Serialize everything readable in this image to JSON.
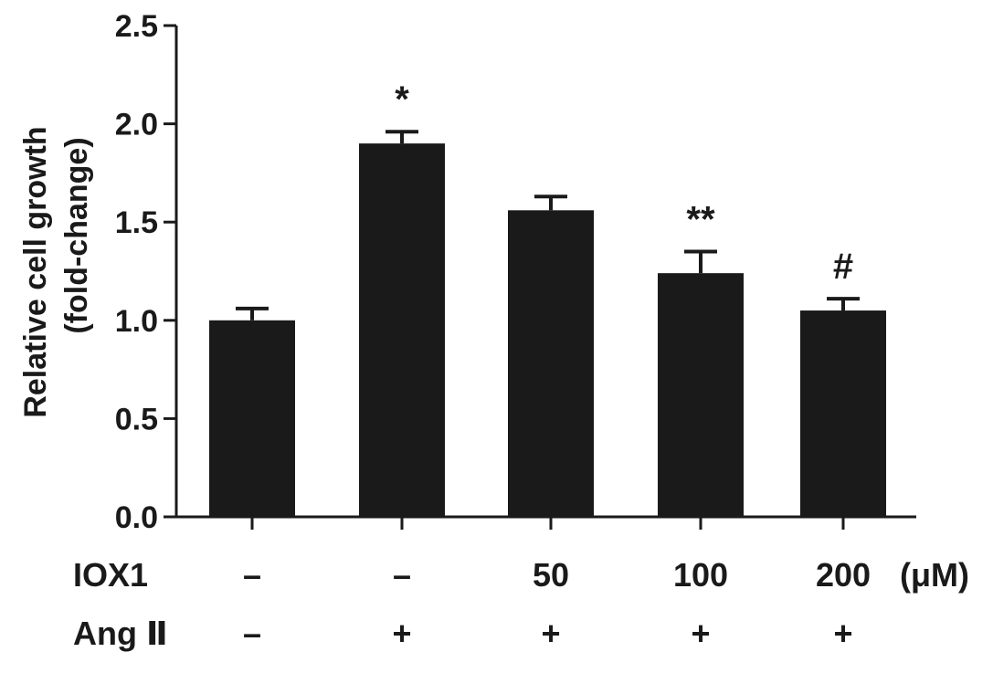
{
  "chart_data": {
    "type": "bar",
    "ylabel_line1": "Relative cell growth",
    "ylabel_line2": "(fold-change)",
    "ylim": [
      0,
      2.5
    ],
    "yticks": [
      "0.0",
      "0.5",
      "1.0",
      "1.5",
      "2.0",
      "2.5"
    ],
    "ytick_values": [
      0,
      0.5,
      1.0,
      1.5,
      2.0,
      2.5
    ],
    "values": [
      1.0,
      1.9,
      1.56,
      1.24,
      1.05
    ],
    "errors": [
      0.06,
      0.06,
      0.07,
      0.11,
      0.06
    ],
    "annotations": [
      "",
      "*",
      "",
      "**",
      "#"
    ],
    "bar_color": "#1a1a1a",
    "grid": false,
    "conditions": [
      {
        "label": "IOX1",
        "values": [
          "–",
          "–",
          "50",
          "100",
          "200"
        ],
        "unit": "(μM)"
      },
      {
        "label": "Ang Ⅱ",
        "values": [
          "–",
          "+",
          "+",
          "+",
          "+"
        ],
        "unit": ""
      }
    ]
  }
}
